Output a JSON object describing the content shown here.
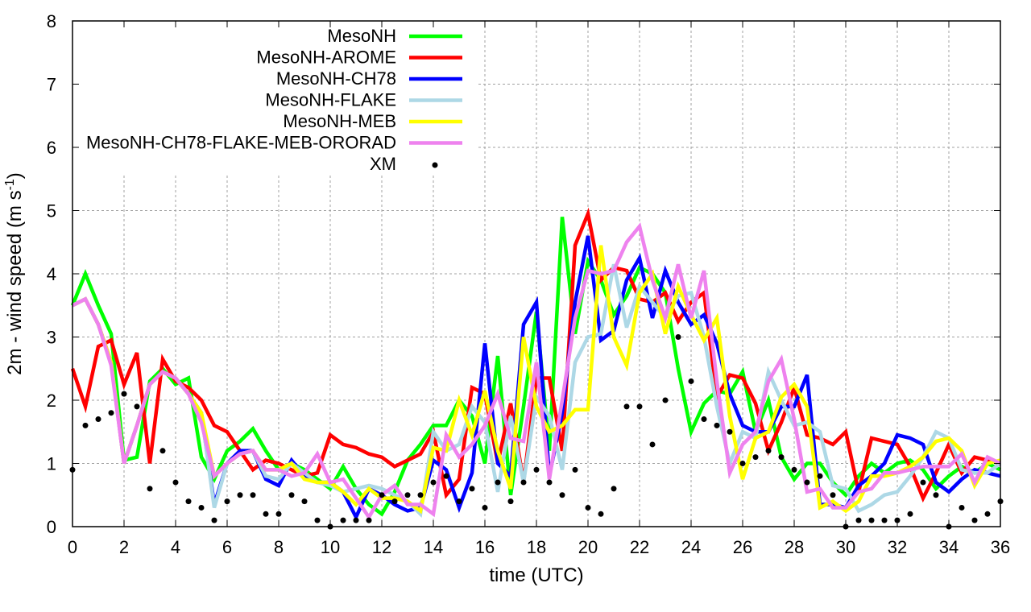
{
  "chart_data": {
    "type": "line",
    "title": "",
    "xlabel": "time (UTC)",
    "ylabel": "2m - wind speed  (m s-1)",
    "ylabel_parts": {
      "main": "2m - wind speed  (m s",
      "sup": "-1",
      "end": ")"
    },
    "xlim": [
      0,
      36
    ],
    "ylim": [
      0,
      8
    ],
    "xticks": [
      0,
      2,
      4,
      6,
      8,
      10,
      12,
      14,
      16,
      18,
      20,
      22,
      24,
      26,
      28,
      30,
      32,
      34,
      36
    ],
    "yticks": [
      0,
      1,
      2,
      3,
      4,
      5,
      6,
      7,
      8
    ],
    "grid": true,
    "legend_position": "top-right",
    "x_step": 0.5,
    "series": [
      {
        "name": "MesoNH",
        "color": "#00ff00",
        "style": "line",
        "values": [
          3.5,
          4.0,
          3.5,
          3.05,
          1.05,
          1.1,
          2.3,
          2.5,
          2.25,
          2.35,
          1.1,
          0.75,
          1.2,
          1.35,
          1.55,
          1.2,
          0.9,
          1.0,
          0.9,
          0.75,
          0.6,
          0.95,
          0.6,
          0.35,
          0.2,
          0.55,
          1.05,
          1.3,
          1.6,
          1.6,
          2.0,
          1.75,
          1.0,
          2.7,
          0.5,
          1.9,
          3.4,
          1.2,
          4.9,
          3.05,
          4.2,
          3.9,
          3.35,
          3.65,
          4.1,
          4.0,
          3.7,
          2.5,
          1.5,
          1.95,
          2.15,
          2.1,
          2.45,
          1.5,
          2.0,
          1.1,
          0.75,
          1.0,
          1.0,
          0.7,
          0.5,
          0.8,
          1.0,
          0.85,
          1.0,
          1.05,
          0.9,
          0.6,
          0.8,
          0.95,
          0.85,
          1.0,
          0.9
        ]
      },
      {
        "name": "MesoNH-AROME",
        "color": "#ff0000",
        "style": "line",
        "values": [
          2.5,
          1.9,
          2.85,
          2.95,
          2.25,
          2.75,
          1.0,
          2.65,
          2.3,
          2.2,
          2.0,
          1.6,
          1.5,
          1.2,
          0.9,
          1.05,
          1.0,
          0.9,
          0.8,
          0.85,
          1.45,
          1.3,
          1.25,
          1.15,
          1.1,
          0.95,
          1.05,
          1.15,
          1.5,
          0.5,
          0.75,
          2.2,
          2.1,
          1.0,
          1.95,
          0.7,
          2.35,
          2.35,
          1.2,
          4.45,
          4.95,
          3.9,
          4.1,
          4.05,
          3.6,
          3.55,
          3.7,
          3.25,
          3.55,
          3.7,
          2.05,
          2.4,
          2.35,
          1.95,
          1.2,
          1.65,
          2.2,
          1.45,
          1.4,
          1.3,
          1.5,
          0.55,
          1.4,
          1.35,
          1.3,
          0.95,
          0.45,
          0.85,
          1.3,
          0.85,
          1.1,
          1.05,
          1.0
        ]
      },
      {
        "name": "MesoNH-CH78",
        "color": "#0000ff",
        "style": "line",
        "values": [
          3.5,
          3.6,
          3.2,
          2.6,
          1.0,
          1.6,
          2.25,
          2.45,
          2.35,
          2.1,
          1.8,
          0.35,
          1.0,
          1.2,
          1.2,
          0.75,
          0.65,
          1.05,
          0.8,
          0.7,
          0.7,
          0.55,
          0.15,
          0.6,
          0.5,
          0.35,
          0.25,
          0.3,
          1.05,
          0.9,
          0.3,
          0.85,
          2.9,
          1.0,
          0.8,
          3.2,
          3.55,
          0.8,
          1.8,
          3.55,
          4.6,
          2.95,
          3.1,
          3.9,
          4.25,
          3.3,
          4.05,
          3.55,
          3.2,
          3.35,
          2.9,
          2.1,
          1.6,
          1.5,
          1.5,
          1.9,
          1.9,
          2.4,
          0.35,
          0.35,
          0.3,
          0.65,
          0.8,
          1.0,
          1.45,
          1.4,
          1.3,
          0.7,
          0.55,
          0.75,
          0.9,
          0.85,
          0.8
        ]
      },
      {
        "name": "MesoNH-FLAKE",
        "color": "#add8e6",
        "style": "line",
        "values": [
          3.5,
          3.6,
          3.2,
          2.6,
          1.0,
          1.6,
          2.25,
          2.45,
          2.35,
          2.1,
          1.8,
          0.3,
          1.0,
          1.15,
          1.2,
          0.8,
          0.75,
          1.0,
          0.85,
          0.7,
          0.65,
          0.55,
          0.6,
          0.65,
          0.6,
          0.5,
          0.4,
          0.2,
          1.5,
          1.2,
          1.3,
          1.9,
          1.65,
          0.55,
          1.75,
          0.7,
          2.05,
          1.75,
          0.9,
          2.6,
          3.0,
          3.05,
          4.15,
          3.15,
          3.8,
          3.55,
          3.3,
          3.65,
          3.7,
          3.0,
          1.9,
          1.0,
          1.5,
          1.4,
          2.45,
          2.0,
          1.6,
          1.65,
          1.5,
          0.65,
          0.6,
          0.25,
          0.35,
          0.5,
          0.55,
          0.8,
          1.1,
          1.5,
          1.4,
          0.9,
          0.85,
          0.85,
          1.0
        ]
      },
      {
        "name": "MesoNH-MEB",
        "color": "#ffff00",
        "style": "line",
        "values": [
          3.5,
          3.6,
          3.2,
          2.6,
          1.0,
          1.6,
          2.25,
          2.45,
          2.35,
          2.1,
          1.8,
          0.8,
          1.0,
          1.15,
          1.2,
          0.9,
          0.9,
          1.0,
          0.75,
          0.7,
          0.7,
          0.55,
          0.35,
          0.6,
          0.45,
          0.45,
          0.4,
          0.25,
          1.25,
          1.2,
          2.0,
          1.45,
          2.15,
          1.2,
          0.6,
          3.0,
          1.9,
          1.5,
          1.6,
          1.85,
          1.85,
          4.45,
          3.0,
          2.55,
          3.7,
          4.0,
          3.05,
          3.8,
          3.35,
          2.95,
          3.3,
          1.75,
          0.75,
          1.4,
          1.5,
          2.05,
          2.25,
          1.9,
          0.3,
          0.4,
          0.25,
          0.4,
          0.8,
          0.8,
          0.85,
          0.95,
          1.1,
          1.35,
          1.4,
          1.2,
          0.65,
          1.0,
          1.05
        ]
      },
      {
        "name": "MesoNH-CH78-FLAKE-MEB-ORORAD",
        "color": "#ee82ee",
        "style": "line",
        "values": [
          3.5,
          3.6,
          3.2,
          2.55,
          1.0,
          1.6,
          2.25,
          2.45,
          2.35,
          2.1,
          1.65,
          0.8,
          1.0,
          1.15,
          1.2,
          0.9,
          0.9,
          0.8,
          0.85,
          1.15,
          0.7,
          0.75,
          0.45,
          0.15,
          0.5,
          0.65,
          0.35,
          0.35,
          0.2,
          1.45,
          1.1,
          1.3,
          1.6,
          2.1,
          1.4,
          1.35,
          2.6,
          0.75,
          2.0,
          3.3,
          4.05,
          4.0,
          4.05,
          4.5,
          4.75,
          3.9,
          3.3,
          4.15,
          3.3,
          4.05,
          2.3,
          0.85,
          1.3,
          1.5,
          2.3,
          2.65,
          1.7,
          0.55,
          0.6,
          0.3,
          0.3,
          0.55,
          0.6,
          0.85,
          0.85,
          0.9,
          0.95,
          0.95,
          0.95,
          1.15,
          0.7,
          1.1,
          1.0
        ]
      },
      {
        "name": "XM",
        "color": "#000000",
        "style": "points",
        "values": [
          0.9,
          1.6,
          1.7,
          1.8,
          2.1,
          1.9,
          0.6,
          1.2,
          0.7,
          0.4,
          0.3,
          0.1,
          0.4,
          0.5,
          0.5,
          0.2,
          0.2,
          0.5,
          0.4,
          0.1,
          0.0,
          0.1,
          0.1,
          0.1,
          0.5,
          0.4,
          0.5,
          0.5,
          0.7,
          0.8,
          0.4,
          0.6,
          0.3,
          0.7,
          0.4,
          0.7,
          0.9,
          0.7,
          0.5,
          0.9,
          0.3,
          0.2,
          0.6,
          1.9,
          1.9,
          1.3,
          2.0,
          3.0,
          2.3,
          1.7,
          1.6,
          1.5,
          1.0,
          1.1,
          1.2,
          1.1,
          0.9,
          0.7,
          0.8,
          0.5,
          0.0,
          0.1,
          0.1,
          0.1,
          0.1,
          0.2,
          0.7,
          0.5,
          0.0,
          0.3,
          0.1,
          0.2,
          0.4
        ]
      }
    ]
  }
}
